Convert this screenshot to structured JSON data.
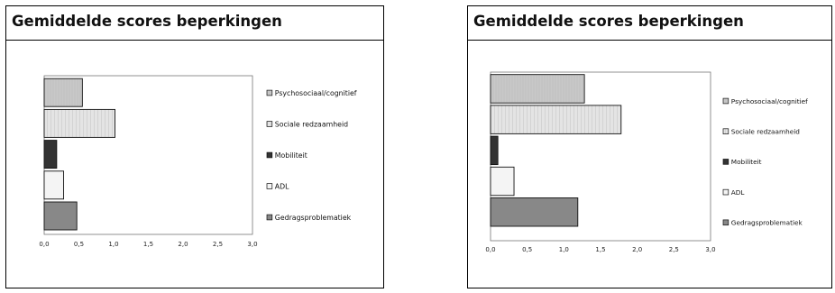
{
  "chart_data": [
    {
      "type": "bar",
      "orientation": "horizontal",
      "title": "Gemiddelde scores beperkingen",
      "categories": [
        "Psychosociaal/cognitief",
        "Sociale redzaamheid",
        "Mobiliteit",
        "ADL",
        "Gedragsproblematiek"
      ],
      "values": [
        0.55,
        1.02,
        0.18,
        0.28,
        0.47
      ],
      "xlim": [
        0,
        3
      ],
      "xticks": [
        "0,0",
        "0,5",
        "1,0",
        "1,5",
        "2,0",
        "2,5",
        "3,0"
      ],
      "legend_position": "right",
      "colors": [
        "#c8c8c8",
        "#e4e4e4",
        "#333333",
        "#f4f4f4",
        "#888888"
      ]
    },
    {
      "type": "bar",
      "orientation": "horizontal",
      "title": "Gemiddelde scores beperkingen",
      "categories": [
        "Psychosociaal/cognitief",
        "Sociale redzaamheid",
        "Mobiliteit",
        "ADL",
        "Gedragsproblematiek"
      ],
      "values": [
        1.28,
        1.78,
        0.1,
        0.32,
        1.19
      ],
      "xlim": [
        0,
        3
      ],
      "xticks": [
        "0,0",
        "0,5",
        "1,0",
        "1,5",
        "2,0",
        "2,5",
        "3,0"
      ],
      "legend_position": "right",
      "colors": [
        "#c8c8c8",
        "#e4e4e4",
        "#333333",
        "#f4f4f4",
        "#888888"
      ]
    }
  ]
}
